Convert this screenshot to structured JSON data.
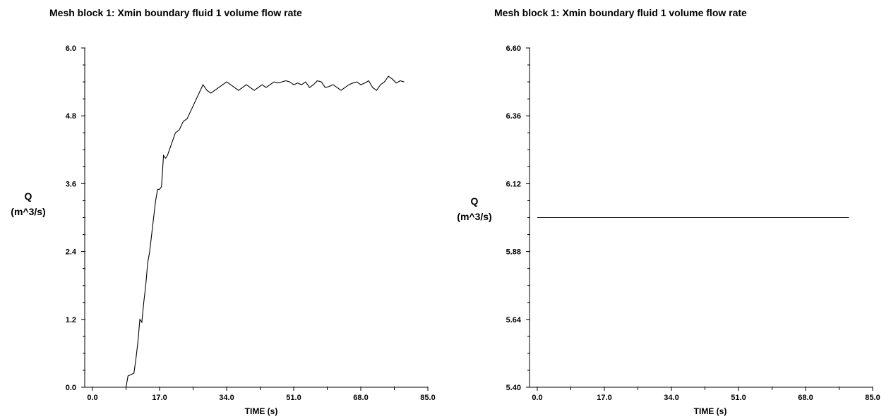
{
  "chart_data": [
    {
      "type": "line",
      "title": "Mesh block 1: Xmin boundary fluid 1 volume flow rate",
      "xlabel": "TIME (s)",
      "ylabel": [
        "Q",
        "(m^3/s)"
      ],
      "xlim": [
        0.0,
        85.0
      ],
      "ylim": [
        0.0,
        6.0
      ],
      "x_ticks": [
        "0.0",
        "17.0",
        "34.0",
        "51.0",
        "68.0",
        "85.0"
      ],
      "y_ticks": [
        "0.0",
        "1.2",
        "2.4",
        "3.6",
        "4.8",
        "6.0"
      ],
      "x_tick_values": [
        0,
        17,
        34,
        51,
        68,
        85
      ],
      "y_tick_values": [
        0,
        1.2,
        2.4,
        3.6,
        4.8,
        6.0
      ],
      "series": [
        {
          "x": [
            0,
            8.5,
            9.0,
            10.5,
            11.0,
            11.5,
            12.0,
            12.5,
            13.0,
            13.5,
            14.0,
            14.5,
            15.0,
            15.5,
            16.0,
            16.5,
            17.0,
            17.5,
            18.0,
            18.5,
            19.0,
            19.5,
            20.0,
            21.0,
            22.0,
            23.0,
            24.0,
            25.0,
            26.0,
            27.0,
            28.0,
            29.0,
            30.0,
            31.0,
            32.0,
            33.0,
            34.0,
            35.0,
            36.0,
            37.0,
            38.0,
            39.0,
            40.0,
            41.0,
            42.0,
            43.0,
            44.0,
            45.0,
            46.0,
            47.0,
            48.0,
            49.0,
            50.0,
            51.0,
            52.0,
            53.0,
            54.0,
            55.0,
            56.0,
            57.0,
            58.0,
            59.0,
            60.0,
            61.0,
            62.0,
            63.0,
            64.0,
            65.0,
            66.0,
            67.0,
            68.0,
            69.0,
            70.0,
            71.0,
            72.0,
            73.0,
            74.0,
            75.0,
            76.0,
            77.0,
            78.0,
            79.0
          ],
          "y": [
            0.0,
            0.0,
            0.2,
            0.25,
            0.5,
            0.8,
            1.2,
            1.15,
            1.5,
            1.8,
            2.2,
            2.4,
            2.7,
            3.0,
            3.3,
            3.5,
            3.5,
            3.55,
            4.1,
            4.05,
            4.1,
            4.2,
            4.3,
            4.5,
            4.55,
            4.7,
            4.75,
            4.9,
            5.05,
            5.2,
            5.35,
            5.25,
            5.2,
            5.25,
            5.3,
            5.35,
            5.4,
            5.35,
            5.3,
            5.25,
            5.3,
            5.35,
            5.3,
            5.25,
            5.3,
            5.35,
            5.3,
            5.35,
            5.4,
            5.38,
            5.4,
            5.42,
            5.4,
            5.35,
            5.38,
            5.35,
            5.4,
            5.3,
            5.35,
            5.42,
            5.4,
            5.3,
            5.32,
            5.35,
            5.3,
            5.25,
            5.3,
            5.35,
            5.38,
            5.4,
            5.35,
            5.38,
            5.42,
            5.3,
            5.25,
            5.35,
            5.4,
            5.5,
            5.45,
            5.38,
            5.42,
            5.4
          ]
        }
      ]
    },
    {
      "type": "line",
      "title": "Mesh block 1: Xmin boundary fluid 1 volume flow rate",
      "xlabel": "TIME (s)",
      "ylabel": [
        "Q",
        "(m^3/s)"
      ],
      "xlim": [
        0.0,
        85.0
      ],
      "ylim": [
        5.4,
        6.6
      ],
      "x_ticks": [
        "0.0",
        "17.0",
        "34.0",
        "51.0",
        "68.0",
        "85.0"
      ],
      "y_ticks": [
        "5.40",
        "5.64",
        "5.88",
        "6.12",
        "6.36",
        "6.60"
      ],
      "x_tick_values": [
        0,
        17,
        34,
        51,
        68,
        85
      ],
      "y_tick_values": [
        5.4,
        5.64,
        5.88,
        6.12,
        6.36,
        6.6
      ],
      "series": [
        {
          "x": [
            0,
            79.0
          ],
          "y": [
            6.0,
            6.0
          ]
        }
      ]
    }
  ]
}
